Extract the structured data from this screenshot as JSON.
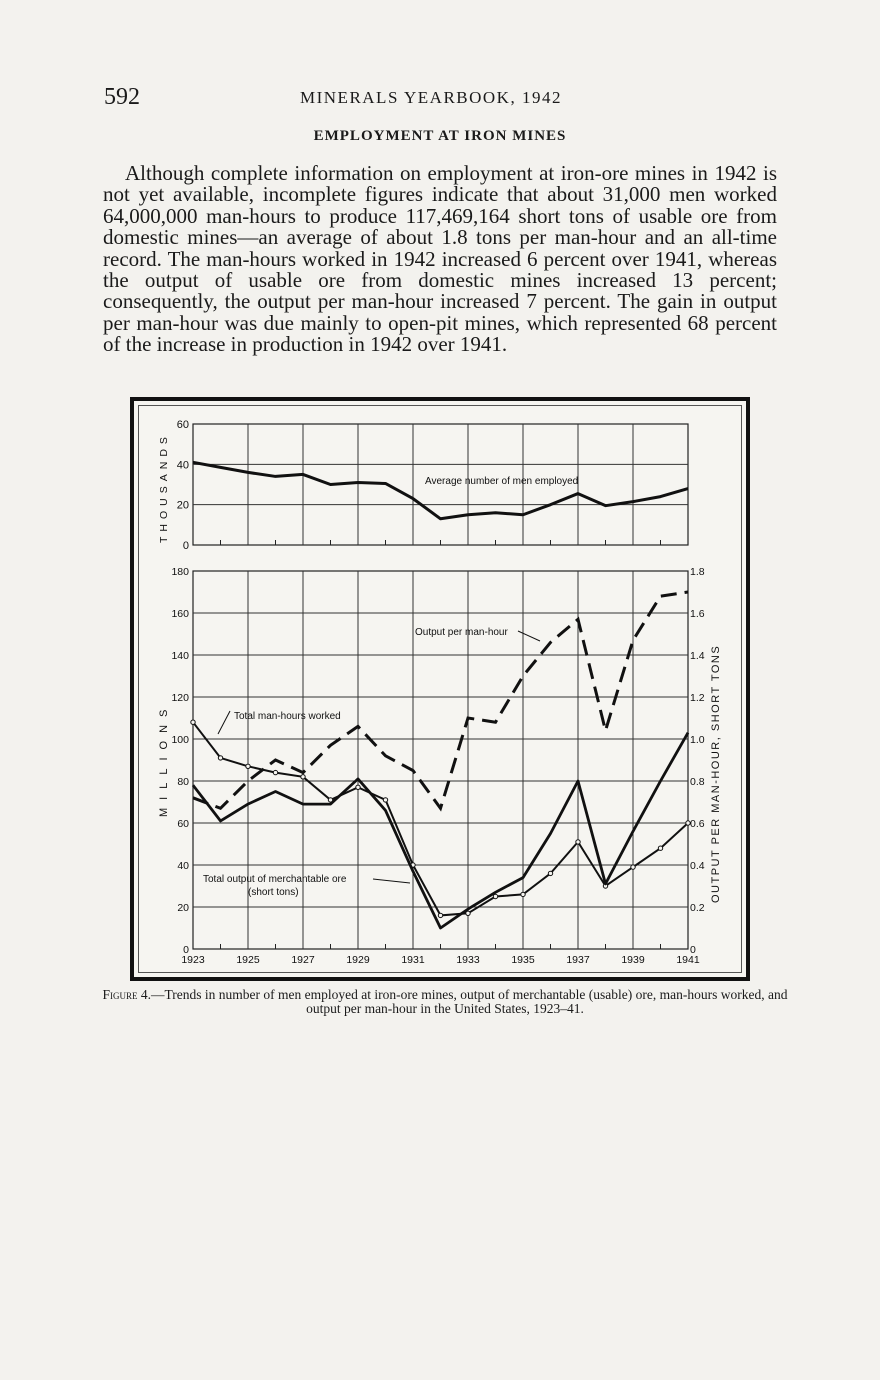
{
  "header": {
    "page_number": "592",
    "running_title": "MINERALS YEARBOOK, 1942"
  },
  "section": {
    "title": "EMPLOYMENT AT IRON MINES"
  },
  "body": {
    "paragraph": "Although complete information on employment at iron-ore mines in 1942 is not yet available, incomplete figures indicate that about 31,000 men worked 64,000,000 man-hours to produce 117,469,164 short tons of usable ore from domestic mines—an average of about 1.8 tons per man-hour and an all-time record. The man-hours worked in 1942 increased 6 percent over 1941, whereas the output of usable ore from domestic mines increased 13 percent; consequently, the output per man-hour increased 7 percent. The gain in output per man-hour was due mainly to open-pit mines, which represented 68 percent of the increase in production in 1942 over 1941."
  },
  "caption": {
    "label": "Figure 4.",
    "text": "—Trends in number of men employed at iron-ore mines, output of merchantable (usable) ore, man-hours worked, and output per man-hour in the United States, 1923–41."
  },
  "chart_data": [
    {
      "type": "line",
      "ylabel": "THOUSANDS",
      "ylim": [
        0,
        60
      ],
      "yticks": [
        "0",
        "20",
        "40",
        "60"
      ],
      "grid": true,
      "x": [
        1923,
        1924,
        1925,
        1926,
        1927,
        1928,
        1929,
        1930,
        1931,
        1932,
        1933,
        1934,
        1935,
        1936,
        1937,
        1938,
        1939,
        1940,
        1941
      ],
      "series": [
        {
          "name": "Average number of men employed",
          "style": "solid-thick",
          "values": [
            41,
            38.5,
            36,
            34,
            35,
            30,
            31,
            30.5,
            23,
            13,
            15,
            16,
            15,
            20,
            25.5,
            19.5,
            21.5,
            24,
            28
          ]
        }
      ]
    },
    {
      "type": "line",
      "xlabel": "",
      "ylabel": "MILLIONS",
      "ylabel_right": "OUTPUT PER MAN-HOUR, SHORT TONS",
      "ylim": [
        0,
        180
      ],
      "ylim_right": [
        0,
        1.8
      ],
      "yticks": [
        "0",
        "20",
        "40",
        "60",
        "80",
        "100",
        "120",
        "140",
        "160",
        "180"
      ],
      "yticks_right": [
        "0",
        "0.2",
        "0.4",
        "0.6",
        "0.8",
        "1.0",
        "1.2",
        "1.4",
        "1.6",
        "1.8"
      ],
      "xticks": [
        "1923",
        "1925",
        "1927",
        "1929",
        "1931",
        "1933",
        "1935",
        "1937",
        "1939",
        "1941"
      ],
      "grid": true,
      "x": [
        1923,
        1924,
        1925,
        1926,
        1927,
        1928,
        1929,
        1930,
        1931,
        1932,
        1933,
        1934,
        1935,
        1936,
        1937,
        1938,
        1939,
        1940,
        1941
      ],
      "series": [
        {
          "name": "Total man-hours worked",
          "style": "solid-circles",
          "axis": "left",
          "values": [
            108,
            91,
            87,
            84,
            82,
            71,
            77,
            71,
            40,
            16,
            17,
            25,
            26,
            36,
            51,
            30,
            39,
            48,
            60
          ]
        },
        {
          "name": "Total output of merchantable ore",
          "name_line2": "(short tons)",
          "style": "solid-thick",
          "axis": "left",
          "values": [
            78,
            61,
            69,
            75,
            69,
            69,
            81,
            66,
            37,
            10,
            19,
            27,
            34,
            55,
            80,
            31,
            56,
            80,
            103
          ]
        },
        {
          "name": "Output per man-hour",
          "style": "dashed",
          "axis": "right",
          "values": [
            0.72,
            0.67,
            0.8,
            0.9,
            0.84,
            0.97,
            1.06,
            0.92,
            0.85,
            0.67,
            1.1,
            1.08,
            1.3,
            1.46,
            1.57,
            1.04,
            1.47,
            1.68,
            1.7
          ]
        }
      ]
    }
  ]
}
